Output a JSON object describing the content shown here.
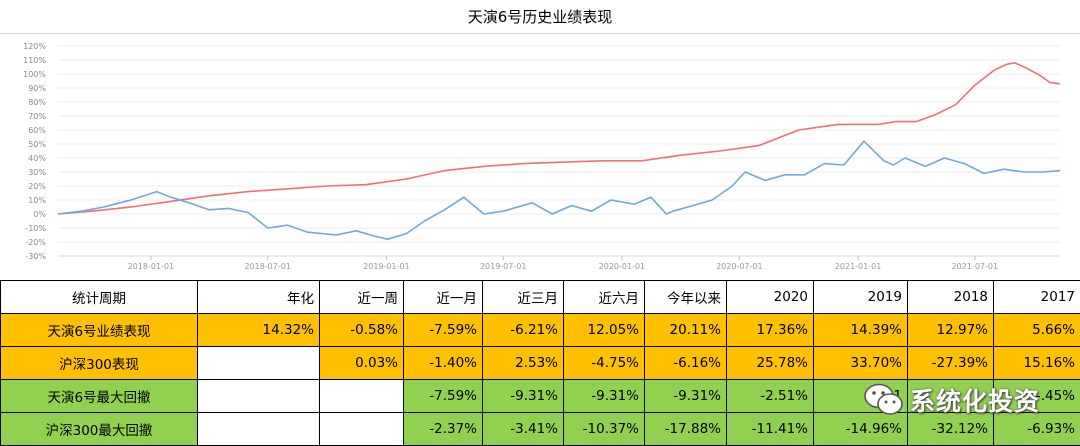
{
  "chart_data": {
    "type": "line",
    "title": "天演6号历史业绩表现",
    "ylim": [
      -30,
      120
    ],
    "y_ticks": [
      -30,
      -20,
      -10,
      0,
      10,
      20,
      30,
      40,
      50,
      60,
      70,
      80,
      90,
      100,
      110,
      120
    ],
    "y_tick_labels": [
      "-30%",
      "-20%",
      "-10%",
      "0%",
      "10%",
      "20%",
      "30%",
      "40%",
      "50%",
      "60%",
      "70%",
      "80%",
      "90%",
      "100%",
      "110%",
      "120%"
    ],
    "x_range": [
      "2017-08-10",
      "2021-11-10"
    ],
    "x_ticks": [
      "2018-01-01",
      "2018-07-01",
      "2019-01-01",
      "2019-07-01",
      "2020-01-01",
      "2020-07-01",
      "2021-01-01",
      "2021-07-01"
    ],
    "grid": true,
    "series": [
      {
        "color": "#f07070",
        "x": [
          "2017-08-10",
          "2017-10-01",
          "2017-12-01",
          "2018-02-01",
          "2018-04-01",
          "2018-06-01",
          "2018-08-01",
          "2018-10-01",
          "2018-12-01",
          "2019-02-01",
          "2019-04-01",
          "2019-06-01",
          "2019-08-01",
          "2019-10-01",
          "2019-12-01",
          "2020-02-01",
          "2020-04-01",
          "2020-06-01",
          "2020-08-01",
          "2020-10-01",
          "2020-12-01",
          "2021-02-01",
          "2021-03-01",
          "2021-04-01",
          "2021-05-01",
          "2021-06-01",
          "2021-07-01",
          "2021-08-01",
          "2021-08-20",
          "2021-09-01",
          "2021-09-20",
          "2021-10-10",
          "2021-10-25",
          "2021-11-10"
        ],
        "values": [
          0,
          2,
          5,
          9,
          13,
          16,
          18,
          20,
          21,
          25,
          31,
          34,
          36,
          37,
          38,
          38,
          42,
          45,
          49,
          60,
          64,
          64,
          66,
          66,
          71,
          78,
          92,
          103,
          107,
          108,
          104,
          99,
          94,
          93
        ]
      },
      {
        "color": "#6fa8dc",
        "x": [
          "2017-08-10",
          "2017-09-15",
          "2017-10-20",
          "2017-12-01",
          "2018-01-10",
          "2018-02-01",
          "2018-03-01",
          "2018-04-01",
          "2018-05-01",
          "2018-06-01",
          "2018-07-01",
          "2018-08-01",
          "2018-09-01",
          "2018-10-15",
          "2018-11-15",
          "2018-12-15",
          "2019-01-03",
          "2019-02-01",
          "2019-03-01",
          "2019-04-01",
          "2019-05-01",
          "2019-06-01",
          "2019-07-01",
          "2019-08-15",
          "2019-09-15",
          "2019-10-15",
          "2019-11-15",
          "2019-12-15",
          "2020-01-20",
          "2020-02-15",
          "2020-03-10",
          "2020-03-20",
          "2020-04-20",
          "2020-05-20",
          "2020-06-20",
          "2020-07-10",
          "2020-08-10",
          "2020-09-10",
          "2020-10-10",
          "2020-11-10",
          "2020-12-10",
          "2021-01-10",
          "2021-02-10",
          "2021-02-25",
          "2021-03-15",
          "2021-04-15",
          "2021-05-15",
          "2021-06-15",
          "2021-07-15",
          "2021-08-15",
          "2021-09-15",
          "2021-10-15",
          "2021-11-10"
        ],
        "values": [
          0,
          2,
          5,
          10,
          16,
          12,
          8,
          3,
          4,
          1,
          -10,
          -8,
          -13,
          -15,
          -12,
          -16,
          -18,
          -14,
          -5,
          3,
          12,
          0,
          2,
          8,
          0,
          6,
          2,
          10,
          7,
          12,
          0,
          2,
          6,
          10,
          20,
          30,
          24,
          28,
          28,
          36,
          35,
          52,
          38,
          35,
          40,
          34,
          40,
          36,
          29,
          32,
          30,
          30,
          31
        ]
      }
    ]
  },
  "table": {
    "header": [
      "统计周期",
      "年化",
      "近一周",
      "近一月",
      "近三月",
      "近六月",
      "今年以来",
      "2020",
      "2019",
      "2018",
      "2017"
    ],
    "rows": [
      {
        "style": "orange",
        "cells": [
          "天演6号业绩表现",
          "14.32%",
          "-0.58%",
          "-7.59%",
          "-6.21%",
          "12.05%",
          "20.11%",
          "17.36%",
          "14.39%",
          "12.97%",
          "5.66%"
        ]
      },
      {
        "style": "orange",
        "blank": [
          1
        ],
        "cells": [
          "沪深300表现",
          "",
          "0.03%",
          "-1.40%",
          "2.53%",
          "-4.75%",
          "-6.16%",
          "25.78%",
          "33.70%",
          "-27.39%",
          "15.16%"
        ]
      },
      {
        "style": "green",
        "blank": [
          1,
          2
        ],
        "cells": [
          "天演6号最大回撤",
          "",
          "",
          "-7.59%",
          "-9.31%",
          "-9.31%",
          "-9.31%",
          "-2.51%",
          "-1",
          "",
          "-.45%"
        ]
      },
      {
        "style": "green",
        "blank": [
          1,
          2
        ],
        "cells": [
          "沪深300最大回撤",
          "",
          "",
          "-2.37%",
          "-3.41%",
          "-10.37%",
          "-17.88%",
          "-11.41%",
          "-14.96%",
          "-32.12%",
          "-6.93%"
        ]
      }
    ]
  },
  "watermark": {
    "text": "系统化投资",
    "icon": "wechat-icon"
  }
}
